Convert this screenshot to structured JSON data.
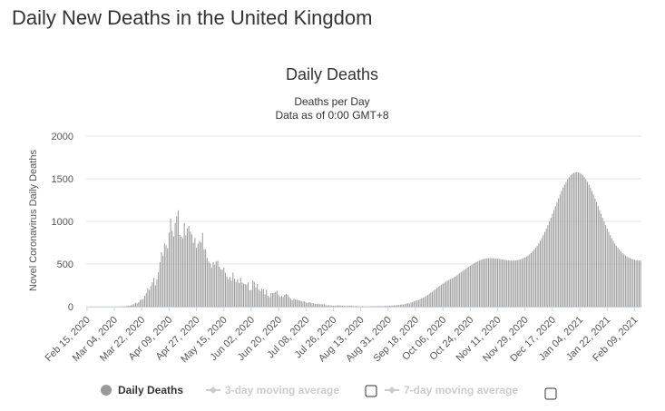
{
  "page": {
    "title": "Daily New Deaths in the United Kingdom"
  },
  "chart_data": {
    "type": "bar",
    "title": "Daily Deaths",
    "subtitle_line1": "Deaths per Day",
    "subtitle_line2": "Data as of 0:00 GMT+8",
    "ylabel": "Novel Coronavirus Daily Deaths",
    "xlabel": "",
    "ylim": [
      0,
      2000
    ],
    "yticks": [
      0,
      500,
      1000,
      1500,
      2000
    ],
    "xticks": [
      "Feb 15, 2020",
      "Mar 04, 2020",
      "Mar 22, 2020",
      "Apr 09, 2020",
      "Apr 27, 2020",
      "May 15, 2020",
      "Jun 02, 2020",
      "Jun 20, 2020",
      "Jul 08, 2020",
      "Jul 26, 2020",
      "Aug 13, 2020",
      "Aug 31, 2020",
      "Sep 18, 2020",
      "Oct 06, 2020",
      "Oct 24, 2020",
      "Nov 11, 2020",
      "Nov 29, 2020",
      "Dec 17, 2020",
      "Jan 04, 2021",
      "Jan 22, 2021",
      "Feb 09, 2021"
    ],
    "start_date": "2020-02-15",
    "num_days": 365,
    "values": [
      0,
      0,
      0,
      0,
      0,
      0,
      0,
      0,
      0,
      0,
      0,
      0,
      0,
      0,
      0,
      0,
      0,
      0,
      0,
      1,
      0,
      2,
      1,
      3,
      3,
      5,
      8,
      13,
      10,
      17,
      25,
      30,
      45,
      38,
      52,
      79,
      85,
      88,
      127,
      158,
      215,
      197,
      240,
      285,
      339,
      250,
      322,
      403,
      521,
      638,
      597,
      742,
      721,
      684,
      869,
      1034,
      889,
      823,
      980,
      1060,
      1130,
      841,
      819,
      801,
      981,
      836,
      921,
      947,
      879,
      846,
      747,
      807,
      690,
      739,
      770,
      753,
      866,
      673,
      673,
      571,
      529,
      510,
      455,
      523,
      491,
      530,
      536,
      470,
      438,
      432,
      460,
      397,
      355,
      320,
      348,
      305,
      401,
      330,
      289,
      325,
      278,
      342,
      283,
      271,
      266,
      257,
      285,
      192,
      197,
      305,
      290,
      225,
      266,
      201,
      182,
      212,
      204,
      146,
      196,
      128,
      111,
      158,
      159,
      162,
      174,
      188,
      141,
      114,
      128,
      113,
      140,
      149,
      141,
      112,
      91,
      77,
      93,
      84,
      82,
      75,
      71,
      65,
      58,
      62,
      50,
      44,
      51,
      49,
      40,
      40,
      34,
      31,
      35,
      29,
      30,
      27,
      28,
      18,
      16,
      17,
      16,
      14,
      12,
      11,
      13,
      14,
      15,
      13,
      10,
      12,
      8,
      8,
      9,
      12,
      10,
      6,
      7,
      9,
      6,
      5,
      4,
      8,
      4,
      3,
      4,
      3,
      4,
      5,
      7,
      6,
      4,
      5,
      8,
      7,
      5,
      6,
      9,
      8,
      11,
      10,
      13,
      12,
      15,
      14,
      21,
      17,
      23,
      27,
      25,
      30,
      37,
      40,
      36,
      47,
      55,
      63,
      70,
      73,
      78,
      85,
      98,
      104,
      113,
      126,
      138,
      151,
      165,
      173,
      188,
      202,
      220,
      235,
      243,
      257,
      270,
      282,
      294,
      305,
      315,
      322,
      330,
      340,
      352,
      365,
      378,
      392,
      405,
      418,
      430,
      443,
      456,
      468,
      480,
      492,
      503,
      514,
      524,
      533,
      541,
      548,
      554,
      559,
      563,
      566,
      568,
      569,
      569,
      568,
      567,
      565,
      563,
      560,
      557,
      554,
      551,
      548,
      545,
      543,
      541,
      540,
      540,
      541,
      543,
      546,
      550,
      555,
      561,
      569,
      578,
      588,
      600,
      614,
      630,
      648,
      668,
      690,
      715,
      742,
      772,
      804,
      839,
      876,
      915,
      956,
      999,
      1043,
      1088,
      1134,
      1180,
      1226,
      1271,
      1315,
      1357,
      1396,
      1432,
      1465,
      1494,
      1519,
      1540,
      1556,
      1568,
      1575,
      1577,
      1575,
      1568,
      1556,
      1540,
      1519,
      1494,
      1465,
      1432,
      1396,
      1357,
      1315,
      1271,
      1226,
      1180,
      1134,
      1088,
      1043,
      999,
      956,
      915,
      876,
      839,
      804,
      772,
      742,
      715,
      690,
      668,
      648,
      630,
      614,
      600,
      588,
      578,
      569,
      561,
      555,
      550,
      546,
      543,
      541,
      540,
      540,
      541,
      543,
      546,
      550,
      555,
      561,
      569
    ],
    "legend": [
      {
        "label": "Daily Deaths",
        "active": true
      },
      {
        "label": "3-day moving average",
        "active": false
      },
      {
        "label": "7-day moving average",
        "active": false
      }
    ]
  },
  "colors": {
    "bar": "#999999",
    "legend_active": "#333333",
    "legend_inactive": "#cccccc"
  }
}
